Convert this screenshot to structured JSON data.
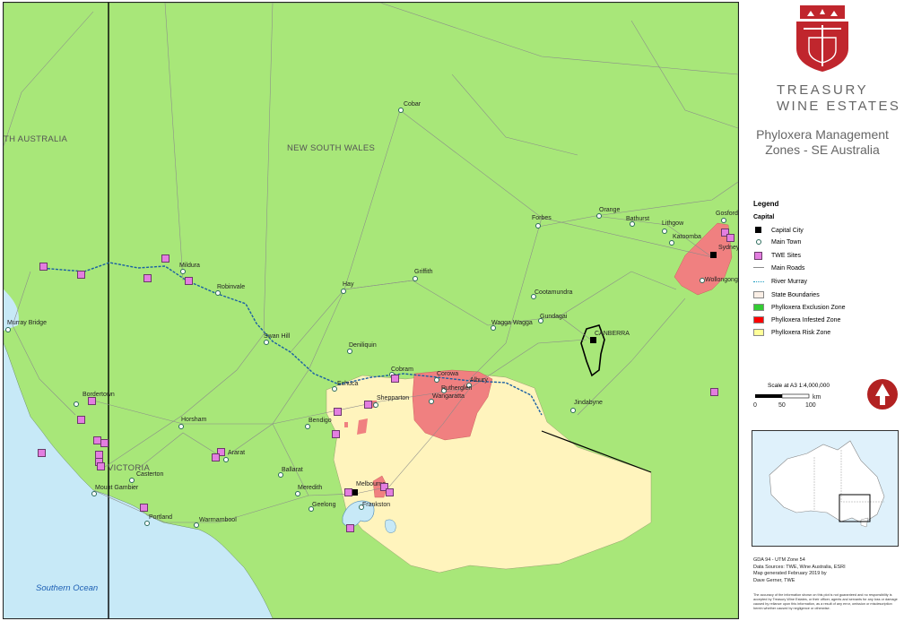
{
  "map": {
    "states": [
      "NEW SOUTH WALES",
      "TH AUSTRALIA",
      "VICTORIA"
    ],
    "ocean": "Southern Ocean",
    "capitals": [
      "Sydney",
      "CANBERRA",
      "Melbourne"
    ],
    "towns": [
      "Cobar",
      "Forbes",
      "Orange",
      "Bathurst",
      "Lithgow",
      "Katoomba",
      "Gosford",
      "Wollongong",
      "Griffith",
      "Cootamundra",
      "Gundagai",
      "Wagga Wagga",
      "Hay",
      "Deniliquin",
      "Swan Hill",
      "Robinvale",
      "Mildura",
      "Murray Bridge",
      "Bordertown",
      "Horsham",
      "Ararat",
      "Casterton",
      "Mount Gambier",
      "Portland",
      "Warrnambool",
      "Ballarat",
      "Meredith",
      "Geelong",
      "Frankston",
      "Bendigo",
      "Echuca",
      "Shepparton",
      "Cobram",
      "Corowa",
      "Albury",
      "Rutherglen",
      "Wangaratta",
      "Jindabyne"
    ]
  },
  "brand": {
    "line1": "TREASURY",
    "line2": "WINE ESTATES"
  },
  "title": {
    "line1": "Phyloxera Management",
    "line2": "Zones - SE Australia"
  },
  "legend": {
    "heading": "Legend",
    "subheading": "Capital",
    "items": [
      {
        "label": "Capital City",
        "kind": "capital"
      },
      {
        "label": "Main Town",
        "kind": "town"
      },
      {
        "label": "TWE Sites",
        "kind": "site"
      },
      {
        "label": "Main Roads",
        "kind": "road"
      },
      {
        "label": "River Murray",
        "kind": "river"
      },
      {
        "label": "State Boundaries",
        "kind": "state"
      },
      {
        "label": "Phylloxera Exclusion Zone",
        "kind": "zone",
        "color": "#33cc33"
      },
      {
        "label": "Phylloxera Infested Zone",
        "kind": "zone",
        "color": "#ff0000"
      },
      {
        "label": "Phylloxera Risk Zone",
        "kind": "zone",
        "color": "#ffff99"
      }
    ]
  },
  "scale": {
    "text": "Scale at A3   1:4,000,000",
    "ticks": [
      "0",
      "50",
      "100"
    ],
    "unit": "km"
  },
  "notes": {
    "line1": "GDA 94 - UTM Zone 54",
    "line2": "Data Sources: TWE, Wine Australia, ESRI",
    "line3": "Map generated February 2019 by",
    "line4": "Dave Gerner, TWE"
  },
  "disclaimer": "The accuracy of the information shown on this plot is not guaranteed and no responsibility is accepted by Treasury Wine Estates, or their officer, agents and servants for any loss or damage caused by reliance upon this information, as a result of any error, omission or misdescription herein whether caused by negligence or otherwise.",
  "colors": {
    "land": "#a8e779",
    "risk": "#fff4bd",
    "infested": "#f08080",
    "water": "#c7e9f7",
    "site": "#e37ee0",
    "accent": "#c0262d"
  }
}
